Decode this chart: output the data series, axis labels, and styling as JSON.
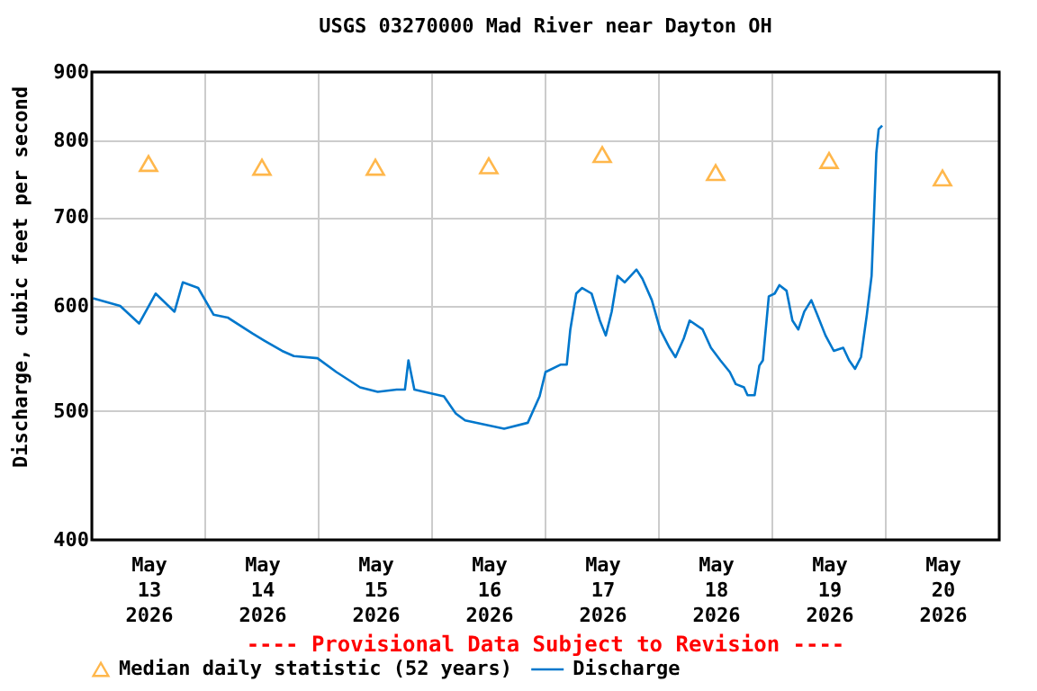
{
  "chart_data": {
    "type": "line",
    "title": "USGS 03270000 Mad River near Dayton OH",
    "ylabel": "Discharge, cubic feet per second",
    "xlim": [
      "2026-05-13T00:00",
      "2026-05-21T00:00"
    ],
    "xticks": [
      {
        "value": "2026-05-13T12:00",
        "label": "May\n13\n2026"
      },
      {
        "value": "2026-05-14T00:00",
        "label": null
      },
      {
        "value": "2026-05-14T12:00",
        "label": "May\n14\n2026"
      },
      {
        "value": "2026-05-15T00:00",
        "label": null
      },
      {
        "value": "2026-05-15T12:00",
        "label": "May\n15\n2026"
      },
      {
        "value": "2026-05-16T00:00",
        "label": null
      },
      {
        "value": "2026-05-16T12:00",
        "label": "May\n16\n2026"
      },
      {
        "value": "2026-05-17T00:00",
        "label": null
      },
      {
        "value": "2026-05-17T12:00",
        "label": "May\n17\n2026"
      },
      {
        "value": "2026-05-18T00:00",
        "label": null
      },
      {
        "value": "2026-05-18T12:00",
        "label": "May\n18\n2026"
      },
      {
        "value": "2026-05-19T00:00",
        "label": null
      },
      {
        "value": "2026-05-19T12:00",
        "label": "May\n19\n2026"
      },
      {
        "value": "2026-05-20T00:00",
        "label": null
      },
      {
        "value": "2026-05-20T12:00",
        "label": "May\n20\n2026"
      }
    ],
    "ylim": [
      400,
      900
    ],
    "yticks": [
      400,
      500,
      600,
      700,
      800,
      900
    ],
    "log": "y",
    "grid": true,
    "legend": "bottom",
    "annotations": [
      "---- Provisional Data Subject to Revision ----"
    ],
    "series": [
      {
        "name": "Median daily statistic (52 years)",
        "type": "scatter",
        "marker": "triangle",
        "color": "#ff9900",
        "x": [
          "2026-05-13T12:00",
          "2026-05-14T12:00",
          "2026-05-15T12:00",
          "2026-05-16T12:00",
          "2026-05-17T12:00",
          "2026-05-18T12:00",
          "2026-05-19T12:00",
          "2026-05-20T12:00"
        ],
        "values": [
          768,
          763,
          763,
          765,
          780,
          756,
          772,
          749
        ]
      },
      {
        "name": "Discharge",
        "type": "line",
        "color": "#0077cc",
        "x": [
          "2026-05-13T00:15",
          "2026-05-13T06:00",
          "2026-05-13T10:00",
          "2026-05-13T13:30",
          "2026-05-13T17:30",
          "2026-05-13T19:15",
          "2026-05-13T22:30",
          "2026-05-14T01:45",
          "2026-05-14T04:45",
          "2026-05-14T10:00",
          "2026-05-14T12:30",
          "2026-05-14T16:15",
          "2026-05-14T18:45",
          "2026-05-14T23:45",
          "2026-05-15T03:45",
          "2026-05-15T08:45",
          "2026-05-15T12:30",
          "2026-05-15T16:30",
          "2026-05-15T18:15",
          "2026-05-15T19:00",
          "2026-05-15T20:15",
          "2026-05-16T02:30",
          "2026-05-16T05:00",
          "2026-05-16T07:00",
          "2026-05-16T15:15",
          "2026-05-16T20:15",
          "2026-05-16T22:45",
          "2026-05-17T00:00",
          "2026-05-17T03:15",
          "2026-05-17T04:30",
          "2026-05-17T05:15",
          "2026-05-17T06:30",
          "2026-05-17T07:45",
          "2026-05-17T09:45",
          "2026-05-17T11:30",
          "2026-05-17T12:45",
          "2026-05-17T14:00",
          "2026-05-17T15:15",
          "2026-05-17T16:45",
          "2026-05-17T19:15",
          "2026-05-17T20:30",
          "2026-05-17T22:30",
          "2026-05-18T00:15",
          "2026-05-18T02:15",
          "2026-05-18T03:30",
          "2026-05-18T05:15",
          "2026-05-18T06:30",
          "2026-05-18T09:15",
          "2026-05-18T11:00",
          "2026-05-18T13:00",
          "2026-05-18T15:00",
          "2026-05-18T16:15",
          "2026-05-18T18:00",
          "2026-05-18T18:45",
          "2026-05-18T20:15",
          "2026-05-18T21:15",
          "2026-05-18T22:00",
          "2026-05-18T23:15",
          "2026-05-19T00:30",
          "2026-05-19T01:30",
          "2026-05-19T03:00",
          "2026-05-19T04:15",
          "2026-05-19T05:30",
          "2026-05-19T06:45",
          "2026-05-19T08:15",
          "2026-05-19T09:30",
          "2026-05-19T11:15",
          "2026-05-19T13:00",
          "2026-05-19T15:00",
          "2026-05-19T16:15",
          "2026-05-19T17:30",
          "2026-05-19T18:45",
          "2026-05-19T20:00",
          "2026-05-19T21:00",
          "2026-05-19T21:30",
          "2026-05-19T22:00",
          "2026-05-19T22:30",
          "2026-05-19T23:15"
        ],
        "values": [
          608,
          600,
          582,
          613,
          594,
          625,
          619,
          591,
          588,
          572,
          565,
          555,
          550,
          548,
          535,
          521,
          517,
          519,
          519,
          546,
          519,
          513,
          498,
          492,
          485,
          490,
          513,
          535,
          542,
          542,
          576,
          613,
          619,
          613,
          585,
          570,
          594,
          632,
          625,
          639,
          629,
          606,
          576,
          558,
          549,
          567,
          585,
          576,
          558,
          546,
          535,
          524,
          521,
          514,
          514,
          541,
          546,
          610,
          613,
          622,
          616,
          585,
          576,
          594,
          606,
          591,
          570,
          555,
          558,
          546,
          538,
          549,
          591,
          632,
          701,
          782,
          815,
          820
        ]
      }
    ]
  }
}
